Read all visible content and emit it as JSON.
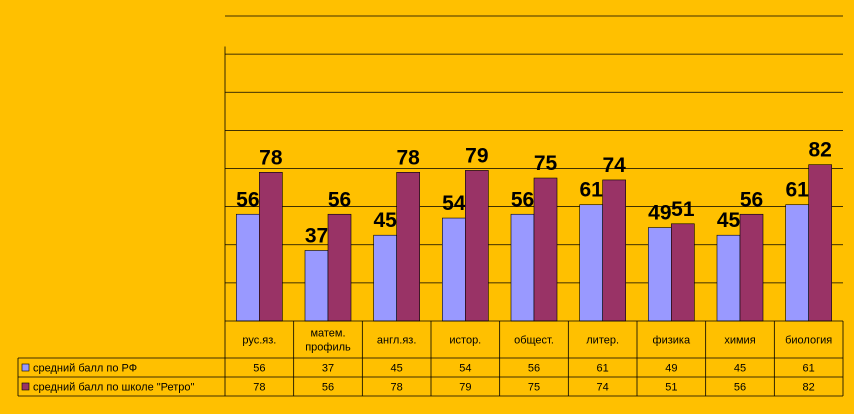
{
  "chart_data": {
    "type": "bar",
    "categories": [
      [
        "рус.яз."
      ],
      [
        "матем.",
        "профиль"
      ],
      [
        "англ.яз."
      ],
      [
        "истор."
      ],
      [
        "общест."
      ],
      [
        "литер."
      ],
      [
        "физика"
      ],
      [
        "химия"
      ],
      [
        "биология"
      ]
    ],
    "series": [
      {
        "name": "средний балл  по РФ",
        "values": [
          56,
          37,
          45,
          54,
          56,
          61,
          49,
          45,
          61
        ],
        "color": "#9999FF"
      },
      {
        "name": "средний балл  по школе \"Ретро\"",
        "values": [
          78,
          56,
          78,
          79,
          75,
          74,
          51,
          56,
          82
        ],
        "color": "#993366"
      }
    ],
    "ylim": [
      0,
      160
    ],
    "grid": true,
    "legend": "data-table",
    "background": "#FFC000"
  }
}
